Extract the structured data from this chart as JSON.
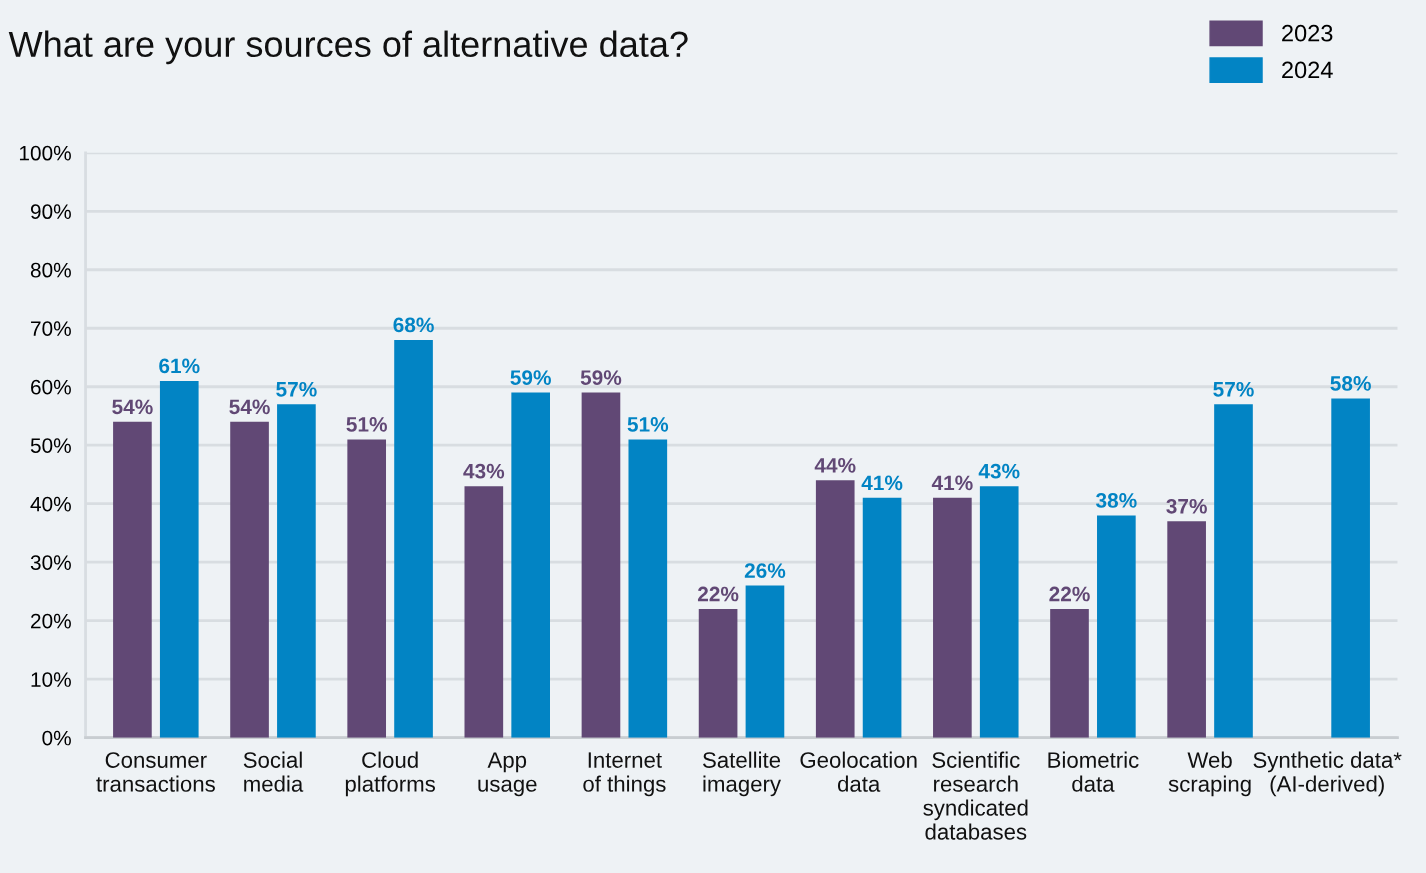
{
  "chart_data": {
    "type": "bar",
    "title": "What are your sources of alternative data?",
    "categories": [
      "Consumer\ntransactions",
      "Social\nmedia",
      "Cloud\nplatforms",
      "App\nusage",
      "Internet\nof things",
      "Satellite\nimagery",
      "Geolocation\ndata",
      "Scientific\nresearch\nsyndicated\ndatabases",
      "Biometric\ndata",
      "Web\nscraping",
      "Synthetic data*\n(AI-derived)"
    ],
    "series": [
      {
        "name": "2023",
        "color": "#614875",
        "values": [
          54,
          54,
          51,
          43,
          59,
          22,
          44,
          41,
          22,
          37,
          null
        ],
        "value_labels": [
          "54%",
          "54%",
          "51%",
          "43%",
          "59%",
          "22%",
          "44%",
          "41%",
          "22%",
          "37%",
          null
        ]
      },
      {
        "name": "2024",
        "color": "#0284c4",
        "values": [
          61,
          57,
          68,
          59,
          51,
          26,
          41,
          43,
          38,
          57,
          58
        ],
        "value_labels": [
          "61%",
          "57%",
          "68%",
          "59%",
          "51%",
          "26%",
          "41%",
          "43%",
          "38%",
          "57%",
          "58%"
        ]
      }
    ],
    "ylim": [
      0,
      100
    ],
    "yticks": [
      {
        "value": 0,
        "label": "0%"
      },
      {
        "value": 10,
        "label": "10%"
      },
      {
        "value": 20,
        "label": "20%"
      },
      {
        "value": 30,
        "label": "30%"
      },
      {
        "value": 40,
        "label": "40%"
      },
      {
        "value": 50,
        "label": "50%"
      },
      {
        "value": 60,
        "label": "60%"
      },
      {
        "value": 70,
        "label": "70%"
      },
      {
        "value": 80,
        "label": "80%"
      },
      {
        "value": 90,
        "label": "90%"
      },
      {
        "value": 100,
        "label": "100%"
      }
    ],
    "grid": "y",
    "legend": "top right"
  }
}
